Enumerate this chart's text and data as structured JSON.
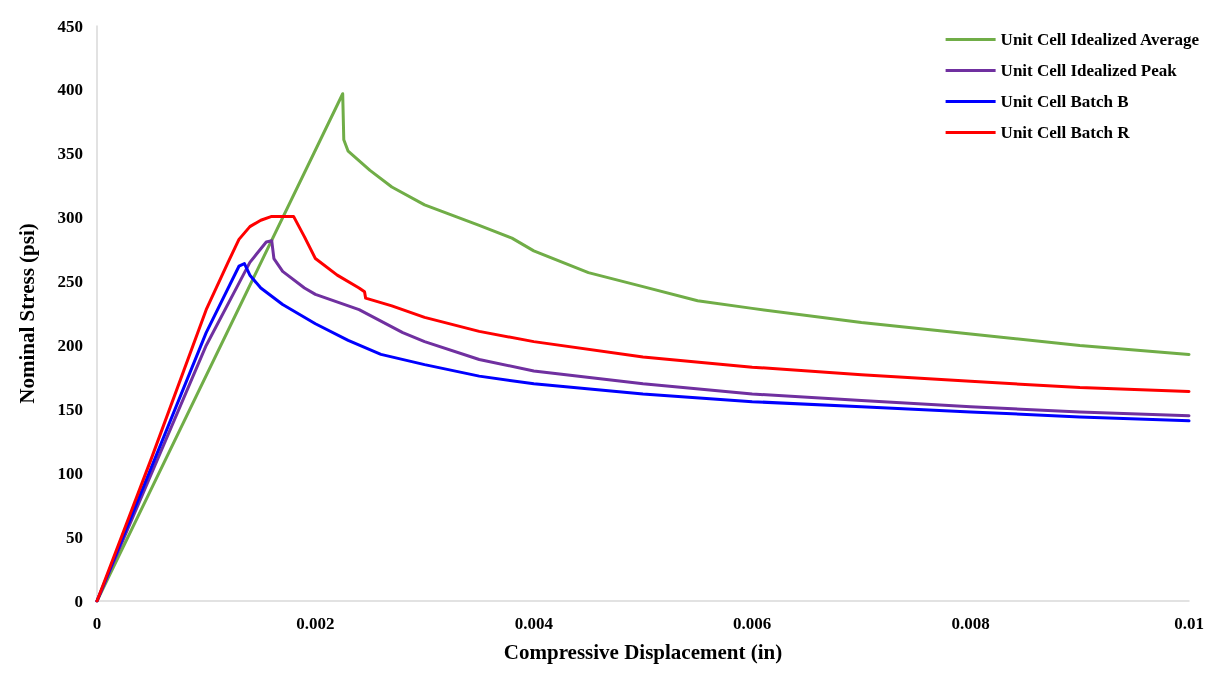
{
  "chart_data": {
    "type": "line",
    "xlabel": "Compressive Displacement (in)",
    "ylabel": "Nominal Stress (psi)",
    "xlim": [
      0,
      0.01
    ],
    "xticks": [
      0,
      0.002,
      0.004,
      0.006,
      0.008,
      0.01
    ],
    "ylim": [
      0,
      450
    ],
    "yticks": [
      0,
      50,
      100,
      150,
      200,
      250,
      300,
      350,
      400,
      450
    ],
    "grid": false,
    "legend": "top right",
    "marker": "none",
    "line_style": "solid",
    "series": [
      {
        "name": "Unit Cell Idealized Average",
        "color": "#70ad47",
        "x": [
          0,
          0.00225,
          0.00226,
          0.0023,
          0.0025,
          0.0027,
          0.003,
          0.0035,
          0.0038,
          0.004,
          0.0045,
          0.005,
          0.0055,
          0.006,
          0.007,
          0.008,
          0.009,
          0.01
        ],
        "values": [
          0,
          397,
          361,
          352,
          337,
          324,
          310,
          294,
          284,
          274,
          257,
          246,
          235,
          229,
          218,
          209,
          200,
          193
        ]
      },
      {
        "name": "Unit Cell Idealized Peak",
        "color": "#7030a0",
        "x": [
          0,
          0.001,
          0.0014,
          0.00155,
          0.0016,
          0.00162,
          0.0017,
          0.0019,
          0.002,
          0.0024,
          0.0028,
          0.003,
          0.0035,
          0.004,
          0.005,
          0.006,
          0.007,
          0.008,
          0.009,
          0.01
        ],
        "values": [
          0,
          200,
          265,
          281,
          282,
          268,
          258,
          245,
          240,
          228,
          210,
          203,
          189,
          180,
          170,
          162,
          157,
          152,
          148,
          145
        ]
      },
      {
        "name": "Unit Cell Batch B",
        "color": "#0000ff",
        "x": [
          0,
          0.001,
          0.0013,
          0.00135,
          0.0014,
          0.0015,
          0.0017,
          0.002,
          0.0023,
          0.0026,
          0.003,
          0.0035,
          0.004,
          0.005,
          0.006,
          0.007,
          0.008,
          0.009,
          0.01
        ],
        "values": [
          0,
          210,
          262,
          264,
          255,
          245,
          232,
          217,
          204,
          193,
          185,
          176,
          170,
          162,
          156,
          152,
          148,
          144,
          141
        ]
      },
      {
        "name": "Unit Cell Batch R",
        "color": "#ff0000",
        "x": [
          0,
          0.0005,
          0.001,
          0.0012,
          0.0013,
          0.0014,
          0.0015,
          0.0016,
          0.0018,
          0.0019,
          0.002,
          0.0022,
          0.0024,
          0.00245,
          0.00246,
          0.0027,
          0.003,
          0.0035,
          0.004,
          0.005,
          0.006,
          0.007,
          0.008,
          0.009,
          0.01
        ],
        "values": [
          0,
          112,
          228,
          265,
          283,
          293,
          298,
          301,
          301,
          285,
          268,
          255,
          245,
          242,
          237,
          231,
          222,
          211,
          203,
          191,
          183,
          177,
          172,
          167,
          164
        ]
      }
    ]
  }
}
